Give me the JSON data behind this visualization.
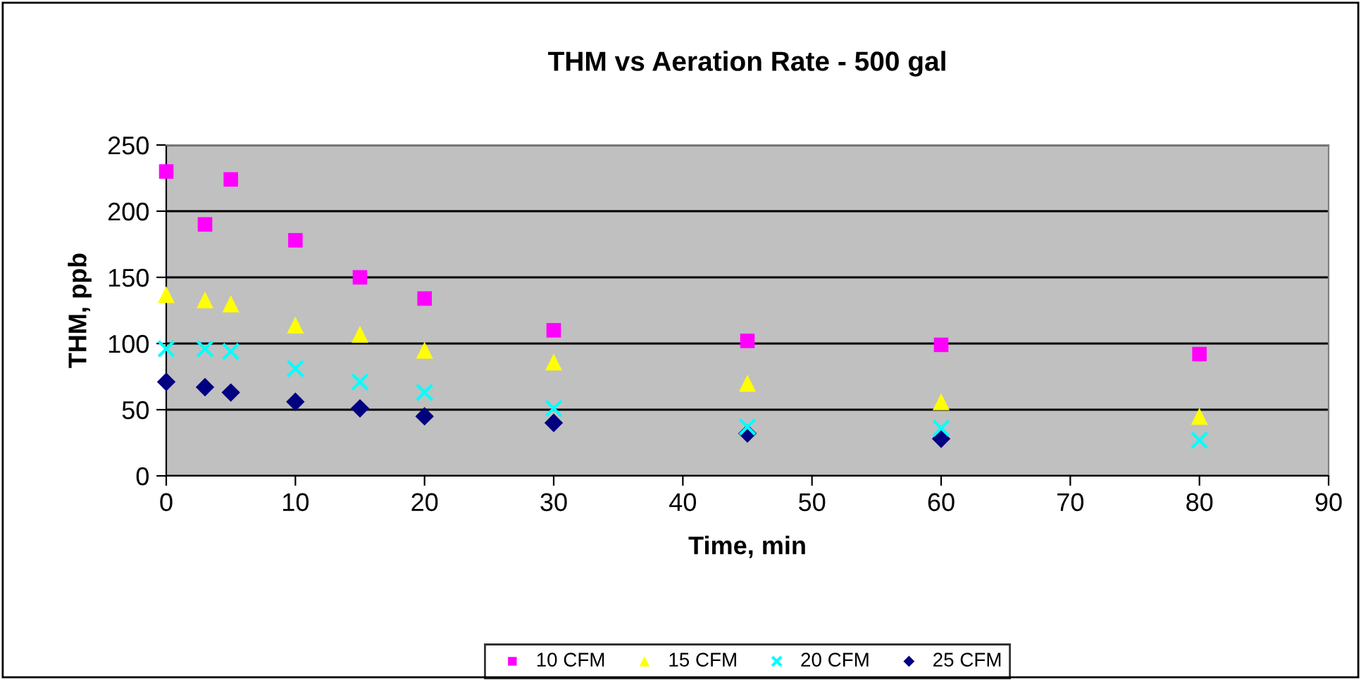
{
  "chart_data": {
    "type": "scatter",
    "title": "THM vs Aeration Rate - 500 gal",
    "xlabel": "Time, min",
    "ylabel": "THM, ppb",
    "x": [
      0,
      3,
      5,
      10,
      15,
      20,
      30,
      45,
      60,
      80
    ],
    "series": [
      {
        "name": "10 CFM",
        "color": "#ff00ff",
        "marker": "square",
        "values": [
          230,
          190,
          224,
          178,
          150,
          134,
          110,
          102,
          99,
          92
        ]
      },
      {
        "name": "15 CFM",
        "color": "#ffff00",
        "marker": "triangle",
        "values": [
          137,
          133,
          130,
          114,
          107,
          95,
          86,
          70,
          56,
          45
        ]
      },
      {
        "name": "20 CFM",
        "color": "#00ffff",
        "marker": "cross",
        "values": [
          96,
          96,
          94,
          81,
          71,
          63,
          51,
          37,
          36,
          27
        ]
      },
      {
        "name": "25 CFM",
        "color": "#000080",
        "marker": "diamond",
        "values": [
          71,
          67,
          63,
          56,
          51,
          45,
          40,
          32,
          28,
          null
        ]
      }
    ],
    "xlim": [
      0,
      90
    ],
    "xticks": [
      0,
      10,
      20,
      30,
      40,
      50,
      60,
      70,
      80,
      90
    ],
    "ylim": [
      0,
      250
    ],
    "yticks": [
      0,
      50,
      100,
      150,
      200,
      250
    ],
    "grid": "y",
    "legend": "bottom"
  }
}
